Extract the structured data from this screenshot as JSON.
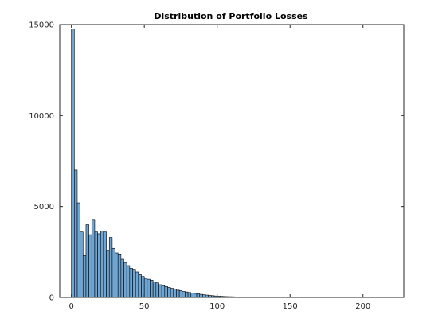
{
  "chart_data": {
    "type": "bar",
    "title": "Distribution of Portfolio Losses",
    "xlabel": "",
    "ylabel": "",
    "xlim": [
      -8,
      228
    ],
    "ylim": [
      0,
      15000
    ],
    "xticks": [
      0,
      50,
      100,
      150,
      200
    ],
    "yticks": [
      0,
      5000,
      10000,
      15000
    ],
    "xtick_labels": [
      "0",
      "50",
      "100",
      "150",
      "200"
    ],
    "ytick_labels": [
      "0",
      "5000",
      "10000",
      "15000"
    ],
    "grid": false,
    "legend": "none",
    "bar_color": "#6fa5d2",
    "edge_color": "#000000",
    "bin_width": 2,
    "bin_starts": [
      0,
      2,
      4,
      6,
      8,
      10,
      12,
      14,
      16,
      18,
      20,
      22,
      24,
      26,
      28,
      30,
      32,
      34,
      36,
      38,
      40,
      42,
      44,
      46,
      48,
      50,
      52,
      54,
      56,
      58,
      60,
      62,
      64,
      66,
      68,
      70,
      72,
      74,
      76,
      78,
      80,
      82,
      84,
      86,
      88,
      90,
      92,
      94,
      96,
      98,
      100,
      102,
      104,
      106,
      108,
      110,
      112,
      114,
      116,
      118
    ],
    "values": [
      14750,
      7000,
      5200,
      3600,
      2300,
      4000,
      3450,
      4250,
      3600,
      3500,
      3650,
      3600,
      2550,
      3300,
      2700,
      2450,
      2350,
      2100,
      1900,
      1750,
      1600,
      1550,
      1400,
      1250,
      1150,
      1050,
      1000,
      950,
      850,
      800,
      700,
      650,
      600,
      550,
      500,
      450,
      400,
      380,
      330,
      300,
      270,
      240,
      220,
      200,
      170,
      150,
      130,
      110,
      95,
      80,
      70,
      60,
      50,
      45,
      40,
      35,
      30,
      25,
      20,
      15
    ]
  }
}
